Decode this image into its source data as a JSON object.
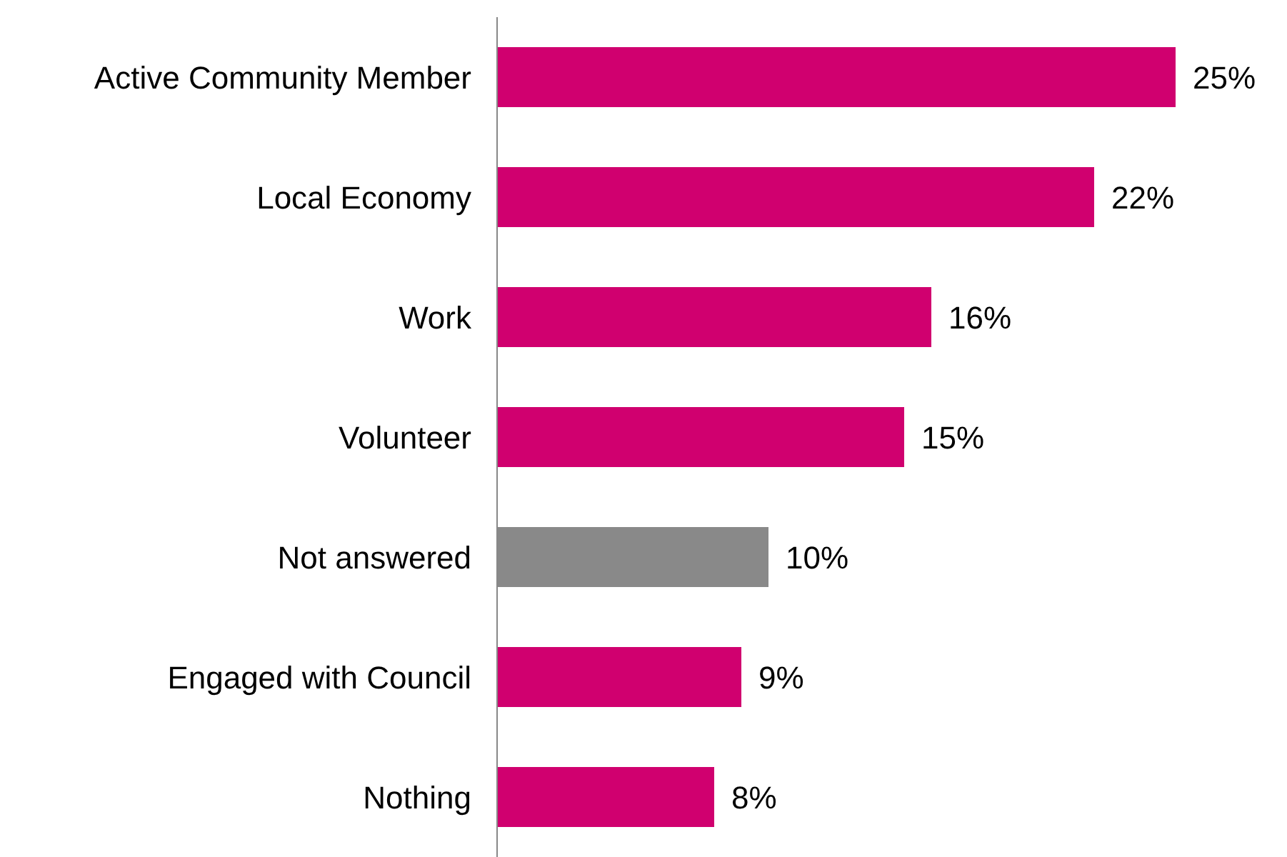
{
  "chart_data": {
    "type": "bar",
    "orientation": "horizontal",
    "categories": [
      "Active Community Member",
      "Local Economy",
      "Work",
      "Volunteer",
      "Not answered",
      "Engaged with Council",
      "Nothing"
    ],
    "values": [
      25,
      22,
      16,
      15,
      10,
      9,
      8
    ],
    "value_labels": [
      "25%",
      "22%",
      "16%",
      "15%",
      "10%",
      "9%",
      "8%"
    ],
    "colors": [
      "#d0006f",
      "#d0006f",
      "#d0006f",
      "#d0006f",
      "#898989",
      "#d0006f",
      "#d0006f"
    ],
    "grid": false,
    "legend": false,
    "tick_labels": "y"
  }
}
